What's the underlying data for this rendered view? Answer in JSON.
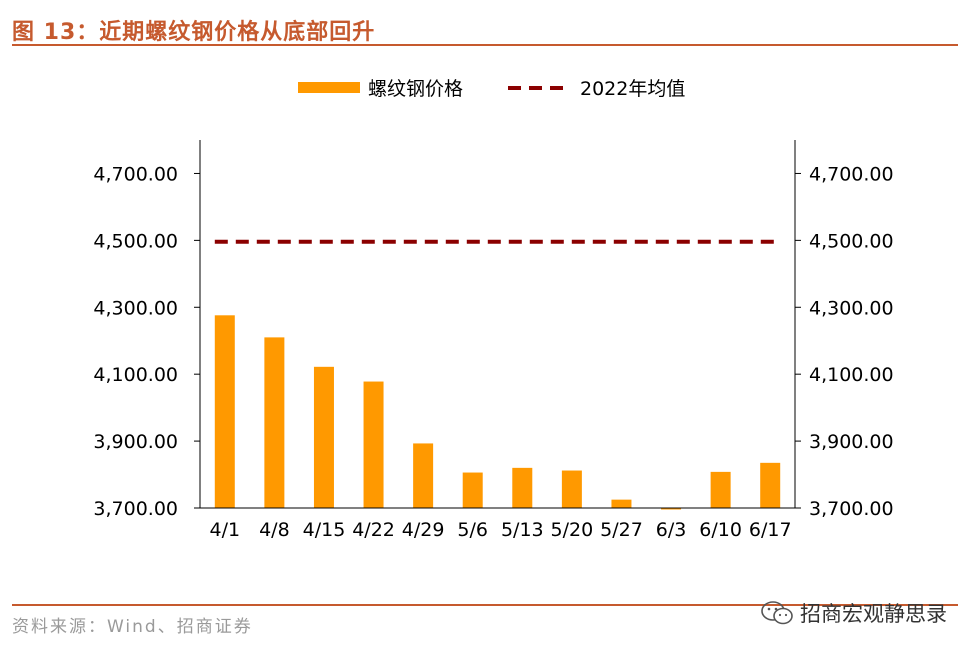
{
  "figure": {
    "title": "图 13：近期螺纹钢价格从底部回升",
    "source": "资料来源：Wind、招商证券",
    "watermark": "招商宏观静思录"
  },
  "colors": {
    "accent": "#c65a2e",
    "bar": "#ff9900",
    "avg_line": "#8b0000",
    "axis": "#000000"
  },
  "chart_data": {
    "type": "bar",
    "title": "",
    "xlabel": "",
    "ylabel": "",
    "categories": [
      "4/1",
      "4/8",
      "4/15",
      "4/22",
      "4/29",
      "5/6",
      "5/13",
      "5/20",
      "5/27",
      "6/3",
      "6/10",
      "6/17"
    ],
    "series": [
      {
        "name": "螺纹钢价格",
        "kind": "bar",
        "values": [
          4276,
          4210,
          4122,
          4078,
          3893,
          3806,
          3820,
          3812,
          3725,
          3700,
          3808,
          3835
        ]
      },
      {
        "name": "2022年均值",
        "kind": "dashed-line",
        "values": [
          4496,
          4496,
          4496,
          4496,
          4496,
          4496,
          4496,
          4496,
          4496,
          4496,
          4496,
          4496
        ]
      }
    ],
    "ylim": [
      3700,
      4800
    ],
    "yticks": [
      "4,700.00",
      "4,500.00",
      "4,300.00",
      "4,100.00",
      "3,900.00",
      "3,700.00"
    ],
    "ytick_values": [
      4700,
      4500,
      4300,
      4100,
      3900,
      3700
    ],
    "secondary_yticks": [
      "4,700.00",
      "4,500.00",
      "4,300.00",
      "4,100.00",
      "3,900.00",
      "3,700.00"
    ],
    "legend_position": "top-center",
    "grid": false
  }
}
